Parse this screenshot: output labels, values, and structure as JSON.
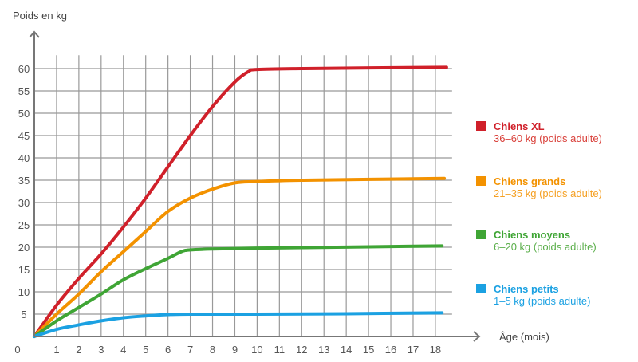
{
  "chart_data": {
    "type": "line",
    "title": "",
    "ylabel": "Poids en kg",
    "xlabel": "Âge (mois)",
    "xlim": [
      0,
      18.75
    ],
    "ylim": [
      0,
      63
    ],
    "x_ticks": [
      "1",
      "2",
      "3",
      "4",
      "5",
      "6",
      "7",
      "8",
      "9",
      "10",
      "11",
      "12",
      "13",
      "14",
      "15",
      "16",
      "17",
      "18"
    ],
    "y_ticks": [
      "0",
      "5",
      "10",
      "15",
      "20",
      "25",
      "30",
      "35",
      "40",
      "45",
      "50",
      "55",
      "60"
    ],
    "grid": true,
    "legend_position": "right",
    "series": [
      {
        "name": "Chiens XL",
        "subtitle": "36–60 kg (poids adulte)",
        "color": "#d0202a",
        "text_color": "#d9403a",
        "points": [
          [
            0,
            0
          ],
          [
            1,
            7
          ],
          [
            2,
            13
          ],
          [
            3,
            18.5
          ],
          [
            4,
            24.5
          ],
          [
            5,
            31
          ],
          [
            6,
            38
          ],
          [
            7,
            45
          ],
          [
            8,
            51.5
          ],
          [
            9,
            57
          ],
          [
            9.6,
            59.3
          ],
          [
            10,
            59.8
          ],
          [
            12,
            60
          ],
          [
            18.5,
            60.3
          ]
        ]
      },
      {
        "name": "Chiens grands",
        "subtitle": "21–35 kg (poids adulte)",
        "color": "#f39200",
        "text_color": "#f5a023",
        "points": [
          [
            0,
            0
          ],
          [
            1,
            5
          ],
          [
            2,
            9.5
          ],
          [
            3,
            14.5
          ],
          [
            4,
            19
          ],
          [
            5,
            23.5
          ],
          [
            6,
            28
          ],
          [
            7,
            31
          ],
          [
            8,
            33
          ],
          [
            9,
            34.4
          ],
          [
            10,
            34.7
          ],
          [
            12,
            35
          ],
          [
            18.4,
            35.4
          ]
        ]
      },
      {
        "name": "Chiens moyens",
        "subtitle": "6–20 kg (poids adulte)",
        "color": "#3fa535",
        "text_color": "#5aae4a",
        "points": [
          [
            0,
            0
          ],
          [
            1,
            3.5
          ],
          [
            2,
            6.5
          ],
          [
            3,
            9.5
          ],
          [
            4,
            12.7
          ],
          [
            5,
            15.2
          ],
          [
            6,
            17.5
          ],
          [
            6.6,
            19
          ],
          [
            7,
            19.4
          ],
          [
            8,
            19.6
          ],
          [
            10,
            19.8
          ],
          [
            12,
            19.9
          ],
          [
            18.3,
            20.3
          ]
        ]
      },
      {
        "name": "Chiens petits",
        "subtitle": "1–5 kg (poids adulte)",
        "color": "#1ba1e2",
        "text_color": "#1ba1e2",
        "points": [
          [
            0,
            0
          ],
          [
            1,
            1.6
          ],
          [
            2,
            2.6
          ],
          [
            3,
            3.5
          ],
          [
            4,
            4.2
          ],
          [
            5,
            4.6
          ],
          [
            6,
            4.9
          ],
          [
            7,
            5
          ],
          [
            10,
            5
          ],
          [
            14,
            5.1
          ],
          [
            18.3,
            5.3
          ]
        ]
      }
    ]
  }
}
